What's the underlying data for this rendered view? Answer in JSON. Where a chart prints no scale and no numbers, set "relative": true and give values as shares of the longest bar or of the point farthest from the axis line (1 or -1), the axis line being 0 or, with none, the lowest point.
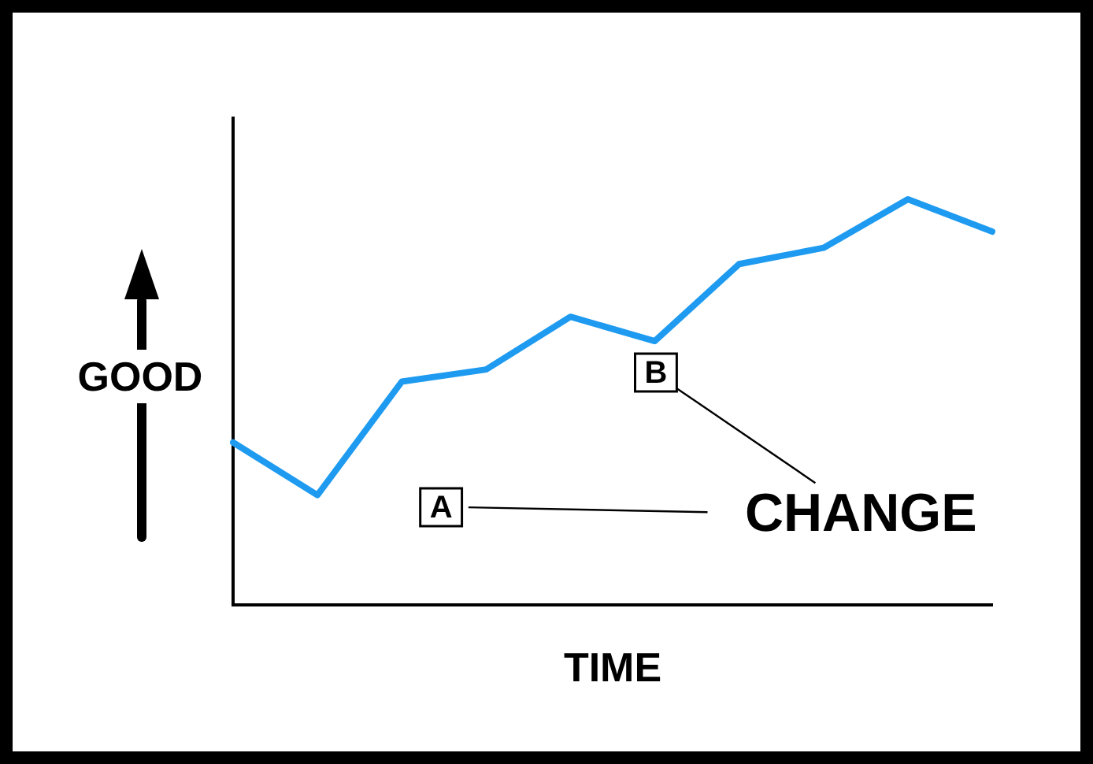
{
  "chart_data": {
    "type": "line",
    "relative": true,
    "xlabel": "TIME",
    "ylabel": "GOOD",
    "categories": [
      null,
      null,
      null,
      null,
      null,
      null,
      null,
      null,
      null,
      null
    ],
    "values": [
      0.4,
      0.27,
      0.55,
      0.58,
      0.71,
      0.65,
      0.84,
      0.88,
      1,
      0.92
    ],
    "color": "#1e9bf0",
    "annotations": [
      "A",
      "B",
      "CHANGE"
    ]
  }
}
